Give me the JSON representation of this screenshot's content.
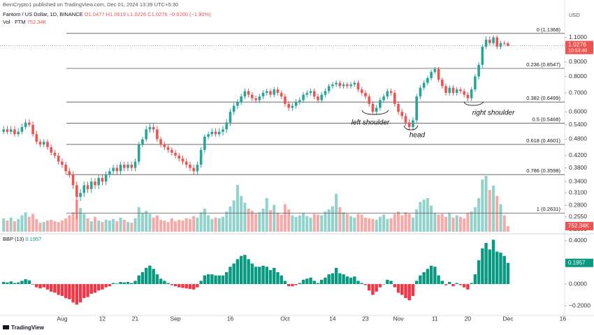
{
  "chart_data": {
    "type": "candlestick",
    "attribution": "BeinCrypto1 published on TradingView.com, Dec 01, 2024 13:39 UTC+5:30",
    "currency": "USD",
    "title": "Fantom / US Dollar, 1D, BINANCE",
    "ohlc_text": "O1.0477 H1.0619 L1.0226 C1.0276 −0.0200 (−1.90%)",
    "brand": "TradingView",
    "countdown": "10:53:40",
    "log_scale": true,
    "grid": false,
    "up_color": "#26a69a",
    "down_color": "#ef5350",
    "xlim": [
      -1,
      153.5
    ],
    "xticks": [
      {
        "value": 16,
        "label": "Aug"
      },
      {
        "value": 27,
        "label": "12"
      },
      {
        "value": 36,
        "label": "21"
      },
      {
        "value": 47,
        "label": "Sep"
      },
      {
        "value": 62,
        "label": "16"
      },
      {
        "value": 77,
        "label": "Oct"
      },
      {
        "value": 90,
        "label": "14"
      },
      {
        "value": 99,
        "label": "23"
      },
      {
        "value": 108,
        "label": "Nov"
      },
      {
        "value": 118,
        "label": "11"
      },
      {
        "value": 127,
        "label": "20"
      },
      {
        "value": 138,
        "label": "Dec"
      },
      {
        "value": 153,
        "label": "16"
      }
    ],
    "ylim": [
      0.226,
      1.37
    ],
    "yticks": [
      {
        "value": 1.1,
        "label": "1.1000"
      },
      {
        "value": 0.9,
        "label": "0.9000"
      },
      {
        "value": 0.8,
        "label": "0.8000"
      },
      {
        "value": 0.7,
        "label": "0.7000"
      },
      {
        "value": 0.6,
        "label": "0.6000"
      },
      {
        "value": 0.54,
        "label": "0.5400"
      },
      {
        "value": 0.48,
        "label": "0.4800"
      },
      {
        "value": 0.42,
        "label": "0.4200"
      },
      {
        "value": 0.38,
        "label": "0.3800"
      },
      {
        "value": 0.34,
        "label": "0.3400"
      },
      {
        "value": 0.31,
        "label": "0.3100"
      },
      {
        "value": 0.28,
        "label": "0.2800"
      },
      {
        "value": 0.255,
        "label": "0.2550"
      },
      {
        "value": 0.23,
        "label": "0.2300"
      }
    ],
    "fib_levels": [
      {
        "value": 1.1368,
        "label": "0 (1.1368)"
      },
      {
        "value": 0.8547,
        "label": "0.236 (0.8547)"
      },
      {
        "value": 0.6499,
        "label": "0.382 (0.6499)"
      },
      {
        "value": 0.5468,
        "label": "0.5 (0.5468)"
      },
      {
        "value": 0.4601,
        "label": "0.618 (0.4601)"
      },
      {
        "value": 0.3598,
        "label": "0.786 (0.3598)"
      },
      {
        "value": 0.2631,
        "label": "1 (0.2631)"
      }
    ],
    "annotations": [
      "left shoulder",
      "head",
      "right shoulder"
    ],
    "open": [
      0.51,
      0.52,
      0.51,
      0.52,
      0.5,
      0.51,
      0.53,
      0.55,
      0.54,
      0.5,
      0.47,
      0.46,
      0.47,
      0.45,
      0.43,
      0.42,
      0.4,
      0.39,
      0.37,
      0.36,
      0.33,
      0.3,
      0.31,
      0.33,
      0.32,
      0.34,
      0.33,
      0.35,
      0.34,
      0.36,
      0.37,
      0.38,
      0.37,
      0.39,
      0.38,
      0.39,
      0.38,
      0.4,
      0.46,
      0.48,
      0.52,
      0.53,
      0.52,
      0.48,
      0.46,
      0.45,
      0.44,
      0.43,
      0.42,
      0.41,
      0.4,
      0.39,
      0.38,
      0.37,
      0.39,
      0.44,
      0.49,
      0.5,
      0.51,
      0.5,
      0.51,
      0.52,
      0.55,
      0.6,
      0.63,
      0.65,
      0.68,
      0.71,
      0.69,
      0.67,
      0.66,
      0.68,
      0.7,
      0.71,
      0.69,
      0.72,
      0.7,
      0.68,
      0.64,
      0.62,
      0.63,
      0.65,
      0.66,
      0.69,
      0.7,
      0.71,
      0.68,
      0.66,
      0.69,
      0.71,
      0.74,
      0.75,
      0.76,
      0.74,
      0.75,
      0.74,
      0.75,
      0.76,
      0.72,
      0.7,
      0.68,
      0.64,
      0.6,
      0.62,
      0.66,
      0.68,
      0.71,
      0.7,
      0.64,
      0.6,
      0.58,
      0.55,
      0.53,
      0.56,
      0.68,
      0.73,
      0.76,
      0.79,
      0.83,
      0.85,
      0.78,
      0.74,
      0.7,
      0.73,
      0.7,
      0.72,
      0.71,
      0.69,
      0.67,
      0.72,
      0.8,
      0.88,
      1.02,
      1.08,
      1.05,
      1.1,
      1.02,
      1.05,
      1.0477
    ],
    "high": [
      0.535,
      0.535,
      0.535,
      0.535,
      0.525,
      0.545,
      0.565,
      0.565,
      0.555,
      0.515,
      0.48,
      0.48,
      0.48,
      0.46,
      0.44,
      0.43,
      0.41,
      0.4,
      0.38,
      0.37,
      0.34,
      0.32,
      0.34,
      0.34,
      0.35,
      0.35,
      0.36,
      0.36,
      0.37,
      0.38,
      0.39,
      0.39,
      0.4,
      0.4,
      0.4,
      0.4,
      0.41,
      0.47,
      0.49,
      0.535,
      0.545,
      0.545,
      0.535,
      0.49,
      0.47,
      0.46,
      0.45,
      0.44,
      0.43,
      0.42,
      0.41,
      0.4,
      0.39,
      0.4,
      0.45,
      0.5,
      0.51,
      0.525,
      0.525,
      0.525,
      0.535,
      0.565,
      0.615,
      0.645,
      0.665,
      0.695,
      0.725,
      0.725,
      0.705,
      0.685,
      0.695,
      0.715,
      0.725,
      0.725,
      0.735,
      0.735,
      0.715,
      0.695,
      0.655,
      0.645,
      0.665,
      0.675,
      0.705,
      0.715,
      0.725,
      0.725,
      0.695,
      0.705,
      0.725,
      0.755,
      0.765,
      0.775,
      0.775,
      0.765,
      0.765,
      0.765,
      0.775,
      0.775,
      0.735,
      0.715,
      0.695,
      0.655,
      0.635,
      0.675,
      0.695,
      0.725,
      0.725,
      0.715,
      0.655,
      0.615,
      0.595,
      0.565,
      0.575,
      0.695,
      0.745,
      0.775,
      0.805,
      0.845,
      0.865,
      0.865,
      0.795,
      0.755,
      0.745,
      0.745,
      0.735,
      0.735,
      0.725,
      0.705,
      0.735,
      0.815,
      0.9,
      1.04,
      1.11,
      1.11,
      1.12,
      1.12,
      1.07,
      1.07,
      1.0619
    ],
    "low": [
      0.5,
      0.5,
      0.5,
      0.49,
      0.49,
      0.5,
      0.52,
      0.53,
      0.49,
      0.46,
      0.45,
      0.45,
      0.44,
      0.42,
      0.41,
      0.39,
      0.38,
      0.36,
      0.35,
      0.32,
      0.25,
      0.29,
      0.3,
      0.31,
      0.31,
      0.32,
      0.32,
      0.33,
      0.33,
      0.35,
      0.36,
      0.36,
      0.36,
      0.37,
      0.37,
      0.37,
      0.37,
      0.39,
      0.45,
      0.47,
      0.505,
      0.505,
      0.47,
      0.45,
      0.44,
      0.43,
      0.42,
      0.41,
      0.4,
      0.39,
      0.38,
      0.37,
      0.36,
      0.36,
      0.38,
      0.43,
      0.48,
      0.49,
      0.49,
      0.49,
      0.495,
      0.505,
      0.535,
      0.585,
      0.615,
      0.635,
      0.665,
      0.675,
      0.655,
      0.645,
      0.645,
      0.665,
      0.685,
      0.675,
      0.675,
      0.685,
      0.665,
      0.625,
      0.605,
      0.605,
      0.615,
      0.635,
      0.645,
      0.675,
      0.685,
      0.665,
      0.645,
      0.645,
      0.675,
      0.695,
      0.725,
      0.735,
      0.725,
      0.725,
      0.725,
      0.725,
      0.735,
      0.705,
      0.685,
      0.665,
      0.625,
      0.585,
      0.585,
      0.605,
      0.645,
      0.665,
      0.685,
      0.625,
      0.585,
      0.565,
      0.535,
      0.515,
      0.515,
      0.545,
      0.665,
      0.715,
      0.745,
      0.775,
      0.815,
      0.765,
      0.725,
      0.685,
      0.685,
      0.685,
      0.685,
      0.695,
      0.675,
      0.655,
      0.655,
      0.705,
      0.78,
      0.86,
      1.0,
      1.03,
      1.03,
      1.0,
      1.0,
      1.03,
      1.0226
    ],
    "close": [
      0.52,
      0.51,
      0.52,
      0.5,
      0.51,
      0.53,
      0.55,
      0.54,
      0.5,
      0.47,
      0.46,
      0.47,
      0.45,
      0.43,
      0.42,
      0.4,
      0.39,
      0.37,
      0.36,
      0.33,
      0.3,
      0.31,
      0.33,
      0.32,
      0.34,
      0.33,
      0.35,
      0.34,
      0.36,
      0.37,
      0.38,
      0.37,
      0.39,
      0.38,
      0.39,
      0.38,
      0.4,
      0.46,
      0.48,
      0.52,
      0.53,
      0.52,
      0.48,
      0.46,
      0.45,
      0.44,
      0.43,
      0.42,
      0.41,
      0.4,
      0.39,
      0.38,
      0.37,
      0.39,
      0.44,
      0.49,
      0.5,
      0.51,
      0.5,
      0.51,
      0.52,
      0.55,
      0.6,
      0.63,
      0.65,
      0.68,
      0.71,
      0.69,
      0.67,
      0.66,
      0.68,
      0.7,
      0.71,
      0.69,
      0.72,
      0.7,
      0.68,
      0.64,
      0.62,
      0.63,
      0.65,
      0.66,
      0.69,
      0.7,
      0.71,
      0.68,
      0.66,
      0.69,
      0.71,
      0.74,
      0.75,
      0.76,
      0.74,
      0.75,
      0.74,
      0.75,
      0.76,
      0.72,
      0.7,
      0.68,
      0.64,
      0.6,
      0.62,
      0.66,
      0.68,
      0.71,
      0.7,
      0.64,
      0.6,
      0.58,
      0.55,
      0.53,
      0.56,
      0.68,
      0.73,
      0.76,
      0.79,
      0.83,
      0.85,
      0.78,
      0.74,
      0.7,
      0.73,
      0.7,
      0.72,
      0.71,
      0.69,
      0.67,
      0.72,
      0.8,
      0.88,
      1.02,
      1.08,
      1.05,
      1.1,
      1.02,
      1.05,
      1.0476,
      1.0276
    ],
    "volume": {
      "name": "Vol · FTM",
      "last_label": "752.34K",
      "values": [
        1800,
        1500,
        1900,
        1400,
        1700,
        2200,
        2600,
        2000,
        2400,
        1700,
        1200,
        1300,
        1500,
        1600,
        1400,
        1300,
        1500,
        1800,
        2200,
        2600,
        4300,
        3200,
        2400,
        1800,
        1400,
        2000,
        1500,
        1300,
        1600,
        1500,
        1700,
        1400,
        1900,
        1600,
        1300,
        1200,
        1800,
        3300,
        2500,
        2800,
        2400,
        1900,
        2200,
        1600,
        1500,
        1300,
        1800,
        1400,
        1600,
        1500,
        1800,
        1700,
        2100,
        1900,
        2600,
        3100,
        2200,
        1700,
        1900,
        1800,
        2000,
        2700,
        3400,
        4200,
        6300,
        4800,
        3900,
        3100,
        2800,
        2400,
        2600,
        3100,
        4500,
        2900,
        3600,
        2500,
        2300,
        3700,
        3000,
        2200,
        2000,
        2200,
        2500,
        2100,
        1900,
        2400,
        2300,
        2200,
        2700,
        3000,
        3400,
        5100,
        3300,
        2600,
        2400,
        2100,
        1900,
        2400,
        2300,
        1900,
        1800,
        1700,
        1600,
        2000,
        2300,
        1700,
        1800,
        2400,
        2700,
        2200,
        2600,
        2400,
        1900,
        3000,
        4000,
        4300,
        4500,
        3500,
        2500,
        2300,
        2400,
        2000,
        2500,
        1900,
        2200,
        2000,
        1800,
        2500,
        2700,
        3300,
        4500,
        7000,
        7500,
        5600,
        6200,
        4800,
        3700,
        2200,
        752.34
      ]
    },
    "bbp": {
      "name": "BBP (13)",
      "pos_color": "#089981",
      "neg_color": "#f23645",
      "ylim": [
        -0.277,
        0.445
      ],
      "yticks": [
        {
          "value": 0.4,
          "label": "0.4000"
        },
        {
          "value": 0.2,
          "label": "0.2000"
        },
        {
          "value": 0,
          "label": "0.0000"
        },
        {
          "value": -0.2,
          "label": "−0.2000"
        }
      ],
      "values": [
        0.02,
        0.015,
        0.025,
        0.01,
        0.015,
        0.03,
        0.045,
        0.035,
        -0.005,
        -0.03,
        -0.04,
        -0.03,
        -0.05,
        -0.07,
        -0.08,
        -0.1,
        -0.11,
        -0.13,
        -0.14,
        -0.17,
        -0.19,
        -0.17,
        -0.13,
        -0.12,
        -0.09,
        -0.08,
        -0.06,
        -0.05,
        -0.03,
        -0.02,
        0.01,
        0.005,
        0.02,
        0.015,
        0.02,
        0.01,
        0.03,
        0.08,
        0.11,
        0.15,
        0.17,
        0.14,
        0.09,
        0.05,
        0.03,
        0.01,
        -0.01,
        -0.02,
        -0.03,
        -0.035,
        -0.04,
        -0.045,
        -0.05,
        -0.03,
        0.03,
        0.08,
        0.09,
        0.09,
        0.08,
        0.08,
        0.08,
        0.11,
        0.16,
        0.19,
        0.23,
        0.26,
        0.27,
        0.23,
        0.19,
        0.16,
        0.16,
        0.17,
        0.16,
        0.13,
        0.15,
        0.11,
        0.08,
        0.03,
        -0.02,
        -0.02,
        -0.01,
        0.01,
        0.04,
        0.05,
        0.06,
        0.03,
        0.01,
        0.04,
        0.06,
        0.09,
        0.1,
        0.15,
        0.1,
        0.09,
        0.07,
        0.06,
        0.07,
        0.03,
        0.01,
        -0.01,
        -0.06,
        -0.1,
        -0.07,
        -0.03,
        0.0,
        0.04,
        0.03,
        -0.03,
        -0.08,
        -0.1,
        -0.13,
        -0.15,
        -0.11,
        0.03,
        0.08,
        0.11,
        0.14,
        0.17,
        0.16,
        0.08,
        0.03,
        -0.01,
        0.02,
        -0.02,
        0.01,
        -0.01,
        -0.03,
        -0.05,
        0.01,
        0.09,
        0.22,
        0.33,
        0.38,
        0.32,
        0.41,
        0.3,
        0.29,
        0.26,
        0.1957
      ]
    }
  }
}
